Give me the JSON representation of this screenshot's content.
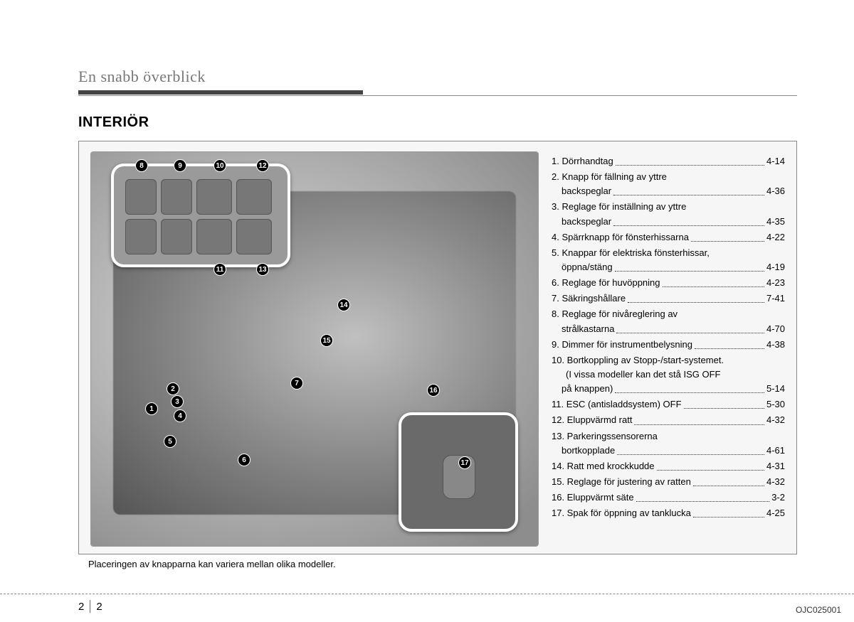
{
  "header": {
    "section_label": "En snabb överblick",
    "title": "INTERIÖR"
  },
  "caption": "Placeringen av knapparna kan variera mellan olika modeller.",
  "image_id": "OJC025001",
  "page_number": {
    "chapter": "2",
    "page": "2"
  },
  "callouts": [
    "1",
    "2",
    "3",
    "4",
    "5",
    "6",
    "7",
    "8",
    "9",
    "10",
    "11",
    "12",
    "13",
    "14",
    "15",
    "16",
    "17"
  ],
  "items": [
    {
      "n": "1",
      "label": "Dörrhandtag",
      "page": "4-14"
    },
    {
      "n": "2",
      "label_l1": "Knapp för fällning av yttre",
      "label_l2": "backspeglar",
      "page": "4-36"
    },
    {
      "n": "3",
      "label_l1": "Reglage för inställning av yttre",
      "label_l2": "backspeglar",
      "page": "4-35"
    },
    {
      "n": "4",
      "label": "Spärrknapp för fönsterhissarna",
      "page": "4-22"
    },
    {
      "n": "5",
      "label_l1": "Knappar för elektriska fönsterhissar,",
      "label_l2": "öppna/stäng",
      "page": "4-19"
    },
    {
      "n": "6",
      "label": "Reglage för huvöppning",
      "page": "4-23"
    },
    {
      "n": "7",
      "label": "Säkringshållare",
      "page": "7-41"
    },
    {
      "n": "8",
      "label_l1": "Reglage för nivåreglering av",
      "label_l2": "strålkastarna",
      "page": "4-70"
    },
    {
      "n": "9",
      "label": "Dimmer för instrumentbelysning",
      "page": "4-38"
    },
    {
      "n": "10",
      "label_l1": "Bortkoppling av Stopp-/start-systemet.",
      "label_l2": "(I vissa modeller kan det stå ISG OFF",
      "label_l3": "på knappen)",
      "page": "5-14"
    },
    {
      "n": "11",
      "label": "ESC (antisladdsystem) OFF",
      "page": "5-30"
    },
    {
      "n": "12",
      "label": "Eluppvärmd ratt",
      "page": "4-32"
    },
    {
      "n": "13",
      "label_l1": "Parkeringssensorerna",
      "label_l2": "bortkopplade",
      "page": "4-61"
    },
    {
      "n": "14",
      "label": "Ratt med krockkudde",
      "page": "4-31"
    },
    {
      "n": "15",
      "label": "Reglage för justering av ratten",
      "page": "4-32"
    },
    {
      "n": "16",
      "label": "Eluppvärmt säte",
      "page": "3-2"
    },
    {
      "n": "17",
      "label": "Spak för öppning av tanklucka",
      "page": "4-25"
    }
  ],
  "colors": {
    "page_bg": "#ffffff",
    "box_bg": "#f6f6f6",
    "box_border": "#888888",
    "text": "#000000",
    "muted_text": "#777777",
    "divider_dark": "#444444"
  }
}
